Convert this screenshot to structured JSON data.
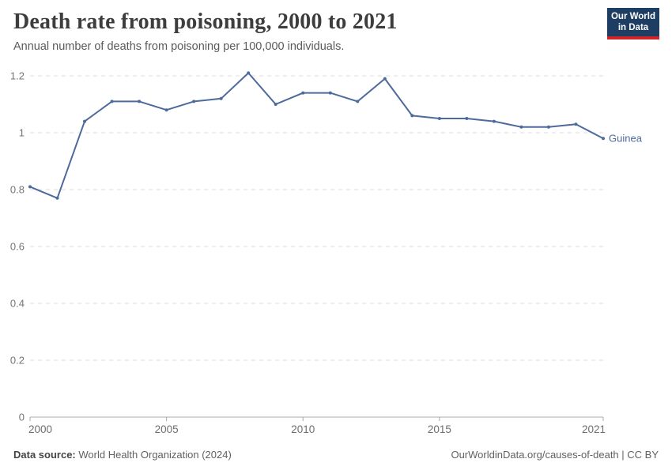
{
  "header": {
    "title": "Death rate from poisoning, 2000 to 2021",
    "subtitle": "Annual number of deaths from poisoning per 100,000 individuals.",
    "logo": {
      "line1": "Our World",
      "line2": "in Data",
      "bg_color": "#1d3d63",
      "accent_color": "#d1242a"
    }
  },
  "footer": {
    "source_label": "Data source:",
    "source_value": "World Health Organization (2024)",
    "link": "OurWorldinData.org/causes-of-death | CC BY"
  },
  "chart_data": {
    "type": "line",
    "title": "Death rate from poisoning, 2000 to 2021",
    "subtitle": "Annual number of deaths from poisoning per 100,000 individuals.",
    "x": [
      2000,
      2001,
      2002,
      2003,
      2004,
      2005,
      2006,
      2007,
      2008,
      2009,
      2010,
      2011,
      2012,
      2013,
      2014,
      2015,
      2016,
      2017,
      2018,
      2019,
      2020,
      2021
    ],
    "series": [
      {
        "name": "Guinea",
        "color": "#4c6a9c",
        "values": [
          0.81,
          0.77,
          1.04,
          1.11,
          1.11,
          1.08,
          1.11,
          1.12,
          1.21,
          1.1,
          1.14,
          1.14,
          1.11,
          1.19,
          1.06,
          1.05,
          1.05,
          1.04,
          1.02,
          1.02,
          1.03,
          0.98
        ]
      }
    ],
    "xlim": [
      2000,
      2021
    ],
    "ylim": [
      0,
      1.2
    ],
    "xticks": [
      2000,
      2005,
      2010,
      2015,
      2021
    ],
    "yticks": [
      0,
      0.2,
      0.4,
      0.6,
      0.8,
      1,
      1.2
    ],
    "ytick_labels": [
      "0",
      "0.2",
      "0.4",
      "0.6",
      "0.8",
      "1",
      "1.2"
    ],
    "grid": "horizontal-dashed",
    "legend_position": "end-of-line-label"
  }
}
